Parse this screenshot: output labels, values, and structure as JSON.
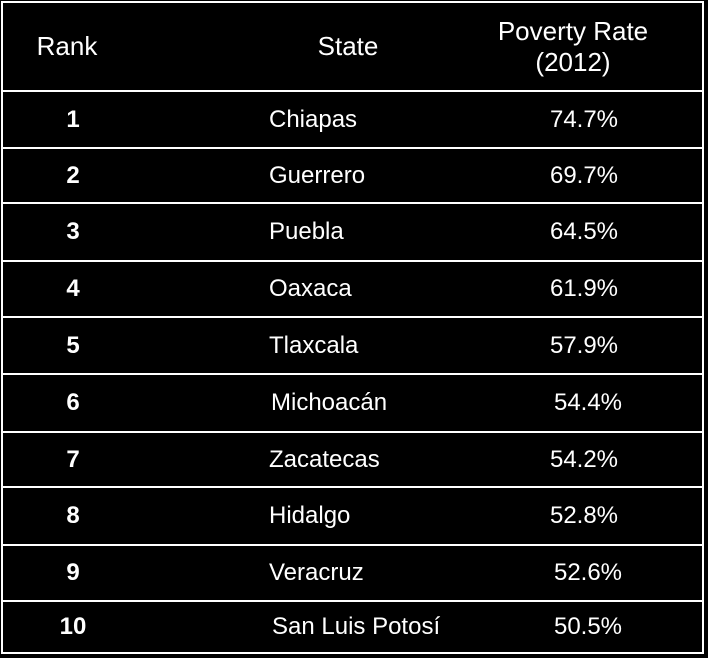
{
  "table": {
    "headers": {
      "rank": "Rank",
      "state": "State",
      "rate_line1": "Poverty Rate",
      "rate_line2": "(2012)"
    },
    "rows": [
      {
        "rank": "1",
        "state": "Chiapas",
        "rate": "74.7%"
      },
      {
        "rank": "2",
        "state": "Guerrero",
        "rate": "69.7%"
      },
      {
        "rank": "3",
        "state": "Puebla",
        "rate": "64.5%"
      },
      {
        "rank": "4",
        "state": "Oaxaca",
        "rate": "61.9%"
      },
      {
        "rank": "5",
        "state": "Tlaxcala",
        "rate": "57.9%"
      },
      {
        "rank": "6",
        "state": "Michoacán",
        "rate": "54.4%"
      },
      {
        "rank": "7",
        "state": "Zacatecas",
        "rate": "54.2%"
      },
      {
        "rank": "8",
        "state": "Hidalgo",
        "rate": "52.8%"
      },
      {
        "rank": "9",
        "state": "Veracruz",
        "rate": "52.6%"
      },
      {
        "rank": "10",
        "state": "San Luis Potosí",
        "rate": "50.5%"
      }
    ]
  },
  "colors": {
    "background": "#000000",
    "text": "#ffffff",
    "border": "#ffffff"
  }
}
